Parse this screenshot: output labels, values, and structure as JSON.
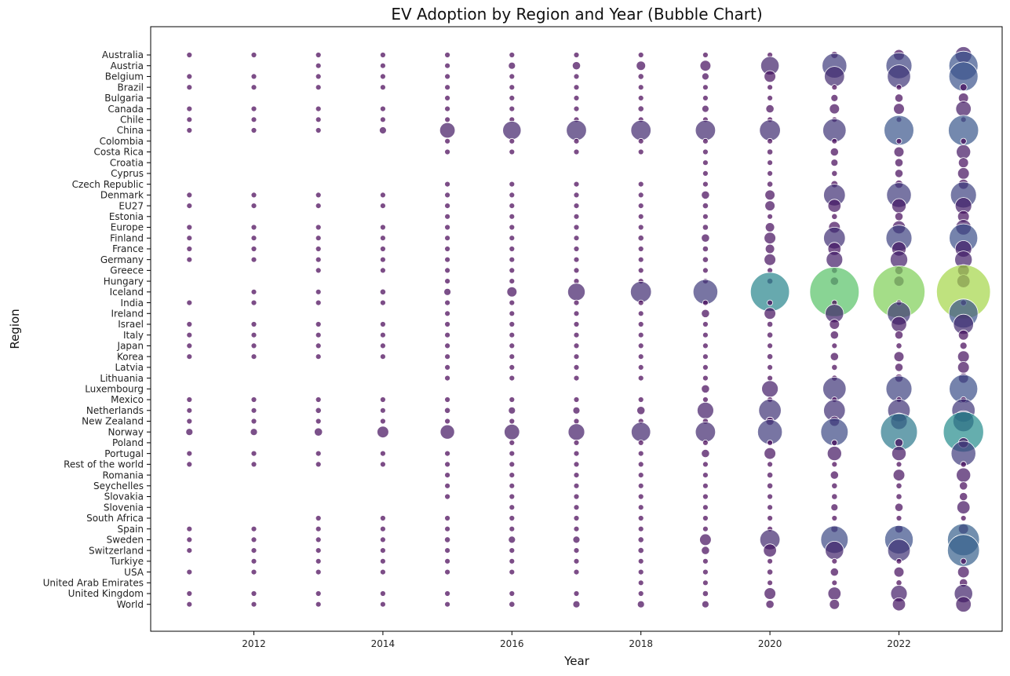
{
  "chart_data": {
    "type": "scatter",
    "title": "EV Adoption by Region and Year (Bubble Chart)",
    "xlabel": "Year",
    "ylabel": "Region",
    "xlim": [
      2010.4,
      2023.6
    ],
    "x_ticks": [
      2012,
      2014,
      2016,
      2018,
      2020,
      2022
    ],
    "regions": [
      "Australia",
      "Austria",
      "Belgium",
      "Brazil",
      "Bulgaria",
      "Canada",
      "Chile",
      "China",
      "Colombia",
      "Costa Rica",
      "Croatia",
      "Cyprus",
      "Czech Republic",
      "Denmark",
      "EU27",
      "Estonia",
      "Europe",
      "Finland",
      "France",
      "Germany",
      "Greece",
      "Hungary",
      "Iceland",
      "India",
      "Ireland",
      "Israel",
      "Italy",
      "Japan",
      "Korea",
      "Latvia",
      "Lithuania",
      "Luxembourg",
      "Mexico",
      "Netherlands",
      "New Zealand",
      "Norway",
      "Poland",
      "Portugal",
      "Rest of the world",
      "Romania",
      "Seychelles",
      "Slovakia",
      "Slovenia",
      "South Africa",
      "Spain",
      "Sweden",
      "Switzerland",
      "Turkiye",
      "USA",
      "United Arab Emirates",
      "United Kingdom",
      "World"
    ],
    "years": [
      2011,
      2012,
      2013,
      2014,
      2015,
      2016,
      2017,
      2018,
      2019,
      2020,
      2021,
      2022,
      2023
    ],
    "value_scale_max": 100,
    "colormap": "viridis",
    "grid": false,
    "values": {
      "Australia": [
        0.05,
        0.05,
        0.05,
        0.05,
        0.1,
        0.1,
        0.1,
        0.1,
        0.2,
        0.5,
        1.5,
        3.5,
        8
      ],
      "Austria": [
        0,
        0,
        0.1,
        0.2,
        0.5,
        1.5,
        2,
        2.5,
        3.5,
        10,
        18,
        20,
        25
      ],
      "Belgium": [
        0.1,
        0.1,
        0.1,
        0.1,
        0.3,
        0.5,
        0.8,
        1,
        1.5,
        4,
        12,
        16,
        25
      ],
      "Brazil": [
        0.05,
        0.05,
        0.05,
        0.05,
        0.05,
        0.05,
        0.05,
        0.05,
        0.05,
        0.1,
        0.2,
        0.8,
        1.5
      ],
      "Bulgaria": [
        0,
        0,
        0,
        0,
        0.05,
        0.05,
        0.1,
        0.1,
        0.3,
        0.5,
        1.5,
        2,
        3
      ],
      "Canada": [
        0.05,
        0.05,
        0.05,
        0.05,
        0.2,
        0.4,
        0.6,
        1,
        1.5,
        2,
        3,
        3.5,
        7
      ],
      "Chile": [
        0.05,
        0.05,
        0.05,
        0.05,
        0.05,
        0.05,
        0.05,
        0.05,
        0.05,
        0.1,
        0.2,
        0.3,
        0.5
      ],
      "China": [
        0.1,
        0.1,
        0.5,
        1.5,
        7,
        10,
        12,
        12,
        12,
        13,
        16,
        26,
        27
      ],
      "Colombia": [
        0,
        0,
        0,
        0,
        0.05,
        0.05,
        0.05,
        0.05,
        0.1,
        0.2,
        0.3,
        0.5,
        1
      ],
      "Costa Rica": [
        0,
        0,
        0,
        0,
        0.05,
        0.05,
        0.05,
        0.1,
        0.5,
        1,
        2,
        3,
        6
      ],
      "Croatia": [
        0,
        0,
        0,
        0,
        0,
        0,
        0,
        0,
        0.2,
        0.5,
        1.5,
        2,
        3
      ],
      "Cyprus": [
        0,
        0,
        0,
        0,
        0,
        0,
        0,
        0,
        0.1,
        0.5,
        1,
        2,
        4
      ],
      "Czech Republic": [
        0,
        0,
        0,
        0,
        0.05,
        0.05,
        0.05,
        0.1,
        0.2,
        1,
        1.5,
        2,
        3
      ],
      "Denmark": [
        0.05,
        0.05,
        0.05,
        0.05,
        0.8,
        0.5,
        0.5,
        0.5,
        2,
        3,
        14,
        18,
        20
      ],
      "EU27": [
        0.05,
        0.05,
        0.05,
        0.05,
        0.1,
        0.2,
        0.3,
        0.4,
        1,
        3,
        5,
        6,
        8
      ],
      "Estonia": [
        0,
        0,
        0,
        0,
        0.05,
        0.05,
        0.05,
        0.05,
        0.1,
        0.5,
        1,
        2,
        4
      ],
      "Europe": [
        0.05,
        0.05,
        0.05,
        0.05,
        0.2,
        0.2,
        0.3,
        0.5,
        1,
        2.5,
        4,
        5,
        7
      ],
      "Finland": [
        0.05,
        0.05,
        0.05,
        0.1,
        0.2,
        0.5,
        0.8,
        1,
        2,
        4,
        14,
        20,
        24
      ],
      "France": [
        0.1,
        0.1,
        0.1,
        0.1,
        0.2,
        0.4,
        0.5,
        0.5,
        1,
        2.5,
        5,
        6,
        8
      ],
      "Germany": [
        0.05,
        0.05,
        0.05,
        0.05,
        0.1,
        0.5,
        0.4,
        0.5,
        1,
        4,
        8,
        9,
        9
      ],
      "Greece": [
        0,
        0,
        0.05,
        0.05,
        0.05,
        0.05,
        0.05,
        0.05,
        0.05,
        0.5,
        1,
        2,
        4
      ],
      "Hungary": [
        0,
        0,
        0,
        0,
        0.05,
        0.1,
        0.5,
        0.5,
        0.5,
        1,
        2,
        3,
        5
      ],
      "Iceland": [
        0,
        0.05,
        0.5,
        1,
        1.5,
        3,
        9,
        13,
        18,
        45,
        72,
        80,
        86
      ],
      "India": [
        0.05,
        0.05,
        0.05,
        0.05,
        0.05,
        0.05,
        0.05,
        0.05,
        0.05,
        0.1,
        0.2,
        0.5,
        1
      ],
      "Ireland": [
        0,
        0,
        0,
        0,
        0.1,
        0.2,
        0.3,
        0.5,
        2,
        4,
        10,
        16,
        25
      ],
      "Israel": [
        0.05,
        0.05,
        0.05,
        0.05,
        0.05,
        0.05,
        0.1,
        0.2,
        0.3,
        1,
        3,
        7,
        12
      ],
      "Italy": [
        0.05,
        0.05,
        0.05,
        0.05,
        0.05,
        0.05,
        0.05,
        0.1,
        0.3,
        1,
        2,
        2,
        3
      ],
      "Japan": [
        0.05,
        0.05,
        0.05,
        0.05,
        0.05,
        0.05,
        0.05,
        0.05,
        0.05,
        0.1,
        0.3,
        1,
        1.5
      ],
      "Korea": [
        0.05,
        0.05,
        0.05,
        0.05,
        0.05,
        0.05,
        0.1,
        0.5,
        0.5,
        1,
        2,
        3,
        4
      ],
      "Latvia": [
        0,
        0,
        0,
        0,
        0.05,
        0.05,
        0.05,
        0.05,
        0.3,
        0.5,
        1,
        2,
        4
      ],
      "Lithuania": [
        0,
        0,
        0,
        0,
        0.05,
        0.05,
        0.05,
        0.05,
        0.05,
        0.5,
        1,
        2,
        3
      ],
      "Luxembourg": [
        0,
        0,
        0,
        0,
        0,
        0,
        0,
        0,
        2,
        8,
        16,
        20,
        24
      ],
      "Mexico": [
        0.05,
        0.05,
        0.05,
        0.05,
        0.05,
        0.05,
        0.05,
        0.05,
        0.05,
        0.1,
        0.3,
        0.5,
        1
      ],
      "Netherlands": [
        0.1,
        0.5,
        1,
        0.8,
        1,
        1.5,
        1.5,
        2,
        8,
        15,
        14,
        15,
        16
      ],
      "New Zealand": [
        0.05,
        0.05,
        0.05,
        0.05,
        0.05,
        0.1,
        0.3,
        0.5,
        1,
        2,
        3,
        8,
        13
      ],
      "Norway": [
        1.5,
        1.5,
        2,
        4,
        6,
        7,
        8,
        11,
        12,
        18,
        22,
        40,
        48
      ],
      "Poland": [
        0,
        0,
        0,
        0,
        0,
        0.05,
        0.05,
        0.05,
        0.05,
        0.5,
        1,
        2,
        3
      ],
      "Portugal": [
        0.05,
        0.05,
        0.05,
        0.05,
        0.05,
        0.3,
        0.3,
        0.5,
        2,
        4,
        6,
        6,
        18
      ],
      "Rest of the world": [
        0.05,
        0.05,
        0.05,
        0.05,
        0.05,
        0.05,
        0.05,
        0.05,
        0.05,
        0.1,
        0.2,
        0.5,
        1
      ],
      "Romania": [
        0,
        0,
        0,
        0,
        0.05,
        0.05,
        0.05,
        0.05,
        0.5,
        1,
        2,
        4,
        6
      ],
      "Seychelles": [
        0,
        0,
        0,
        0,
        0.05,
        0.3,
        0.5,
        0.5,
        0.3,
        1,
        1,
        1,
        2
      ],
      "Slovakia": [
        0,
        0,
        0,
        0,
        0.05,
        0.05,
        0.05,
        0.05,
        0.05,
        0.5,
        1,
        1,
        2
      ],
      "Slovenia": [
        0,
        0,
        0,
        0,
        0,
        0.05,
        0.05,
        0.05,
        0.05,
        0.5,
        1.5,
        2,
        5
      ],
      "South Africa": [
        0,
        0,
        0.05,
        0.05,
        0.05,
        0.05,
        0.05,
        0.05,
        0.05,
        0.05,
        0.1,
        0.1,
        0.2
      ],
      "Spain": [
        0.05,
        0.05,
        0.05,
        0.05,
        0.05,
        0.05,
        0.05,
        0.05,
        0.1,
        0.5,
        1.5,
        2,
        3
      ],
      "Sweden": [
        0.1,
        0.1,
        0.3,
        0.3,
        1,
        1.5,
        1.5,
        1,
        4,
        12,
        22,
        24,
        30
      ],
      "Switzerland": [
        0.05,
        0.05,
        0.1,
        0.1,
        0.5,
        0.5,
        0.5,
        1,
        2,
        5,
        10,
        15,
        30
      ],
      "Turkiye": [
        0,
        0.05,
        0.05,
        0.05,
        0.05,
        0.05,
        0.05,
        0.05,
        0.05,
        0.05,
        0.1,
        0.3,
        1
      ],
      "USA": [
        0.05,
        0.05,
        0.05,
        0.05,
        0.1,
        0.2,
        0.4,
        0.6,
        0.5,
        1,
        2,
        3,
        4
      ],
      "United Arab Emirates": [
        0,
        0,
        0,
        0,
        0,
        0,
        0,
        0.05,
        0.05,
        0.1,
        0.5,
        1,
        2
      ],
      "United Kingdom": [
        0.05,
        0.05,
        0.05,
        0.05,
        0.3,
        0.3,
        0.3,
        0.5,
        1,
        4,
        5,
        8,
        10
      ],
      "World": [
        0.05,
        0.05,
        0.05,
        0.05,
        0.5,
        1,
        1.5,
        1.5,
        1.5,
        2,
        3,
        5,
        7
      ]
    }
  }
}
